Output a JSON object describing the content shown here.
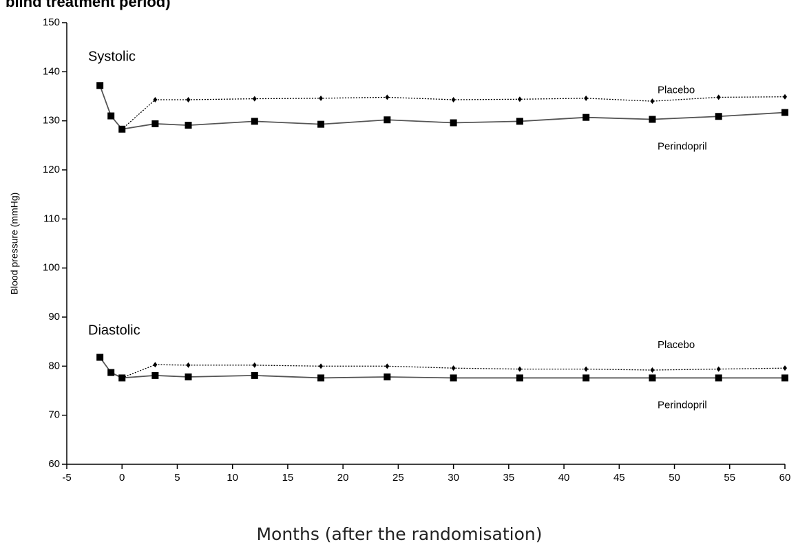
{
  "chart_data": {
    "type": "line",
    "title": "blind treatment period)",
    "x_label": "Months (after the randomisation)",
    "y_label": "Blood pressure (mmHg)",
    "annotations": [
      "Systolic",
      "Diastolic"
    ],
    "xlim": [
      -5,
      60
    ],
    "xticks": [
      -5,
      0,
      5,
      10,
      15,
      20,
      25,
      30,
      35,
      40,
      45,
      50,
      55,
      60
    ],
    "ylim": [
      60,
      150
    ],
    "yticks": [
      60,
      70,
      80,
      90,
      100,
      110,
      120,
      130,
      140,
      150
    ],
    "series": [
      {
        "name": "Placebo",
        "color": "#000000",
        "style": "dotted",
        "marker": "diamond",
        "x": [
          0,
          3,
          6,
          12,
          18,
          24,
          30,
          36,
          42,
          48,
          54,
          60
        ],
        "values": [
          128.3,
          134.3,
          134.3,
          134.5,
          134.6,
          134.8,
          134.3,
          134.4,
          134.6,
          134.0,
          134.8,
          134.9
        ]
      },
      {
        "name": "Perindopril",
        "color": "#000000",
        "style": "solid",
        "marker": "square",
        "x": [
          -2,
          -1,
          0,
          3,
          6,
          12,
          18,
          24,
          30,
          36,
          42,
          48,
          54,
          60
        ],
        "values": [
          137.2,
          131.0,
          128.3,
          129.4,
          129.1,
          129.9,
          129.3,
          130.2,
          129.6,
          129.9,
          130.7,
          130.3,
          130.9,
          131.7
        ]
      },
      {
        "name": "Placebo",
        "color": "#000000",
        "style": "dotted",
        "marker": "diamond",
        "x": [
          0,
          3,
          6,
          12,
          18,
          24,
          30,
          36,
          42,
          48,
          54,
          60
        ],
        "values": [
          77.6,
          80.3,
          80.2,
          80.2,
          80.0,
          80.0,
          79.6,
          79.4,
          79.4,
          79.2,
          79.4,
          79.6
        ]
      },
      {
        "name": "Perindopril",
        "color": "#000000",
        "style": "solid",
        "marker": "square",
        "x": [
          -2,
          -1,
          0,
          3,
          6,
          12,
          18,
          24,
          30,
          36,
          42,
          48,
          54,
          60
        ],
        "values": [
          81.8,
          78.7,
          77.6,
          78.1,
          77.8,
          78.1,
          77.6,
          77.8,
          77.6,
          77.6,
          77.6,
          77.6,
          77.6,
          77.6
        ]
      }
    ]
  }
}
